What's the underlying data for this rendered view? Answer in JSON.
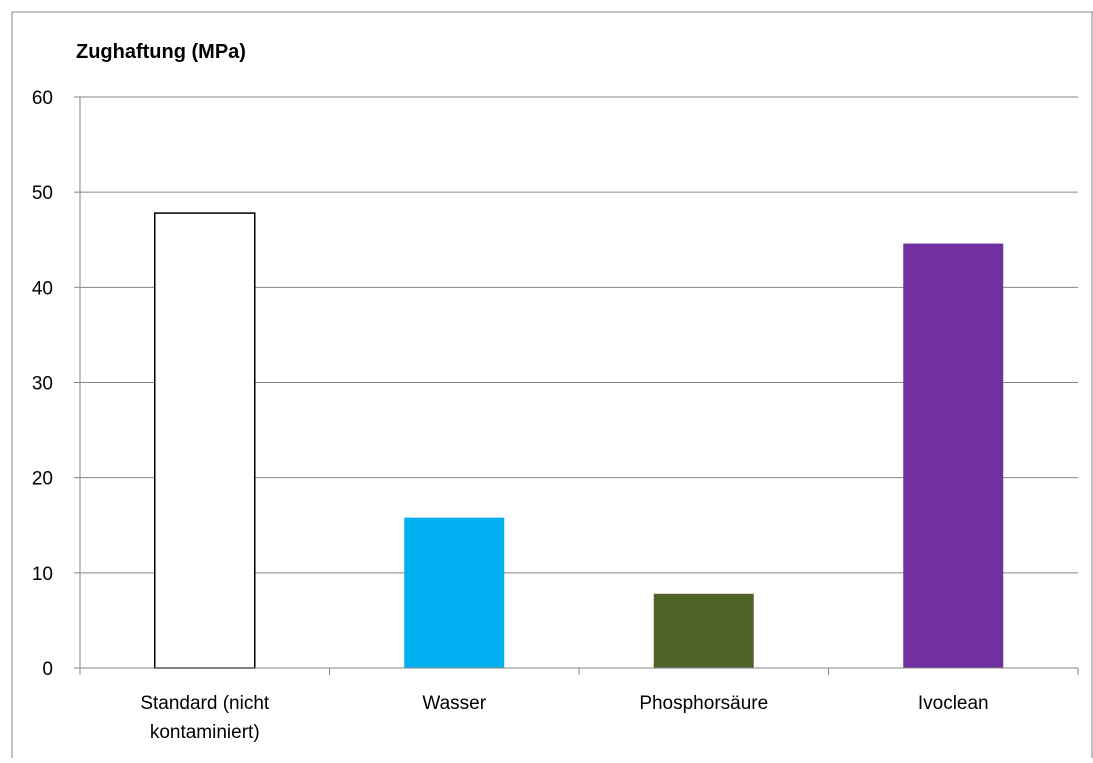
{
  "chart_data": {
    "type": "bar",
    "title": "Zughaftung (MPa)",
    "xlabel": "",
    "ylabel": "",
    "ylim": [
      0,
      60
    ],
    "yticks": [
      0,
      10,
      20,
      30,
      40,
      50,
      60
    ],
    "grid": true,
    "categories": [
      [
        "Standard (nicht",
        "kontaminiert)"
      ],
      [
        "Wasser"
      ],
      [
        "Phosphorsäure"
      ],
      [
        "Ivoclean"
      ]
    ],
    "values": [
      47.8,
      15.8,
      7.8,
      44.6
    ],
    "colors": [
      "#ffffff",
      "#00b0f0",
      "#4f6228",
      "#7030a0"
    ],
    "outline": [
      "#000000",
      null,
      null,
      null
    ]
  }
}
